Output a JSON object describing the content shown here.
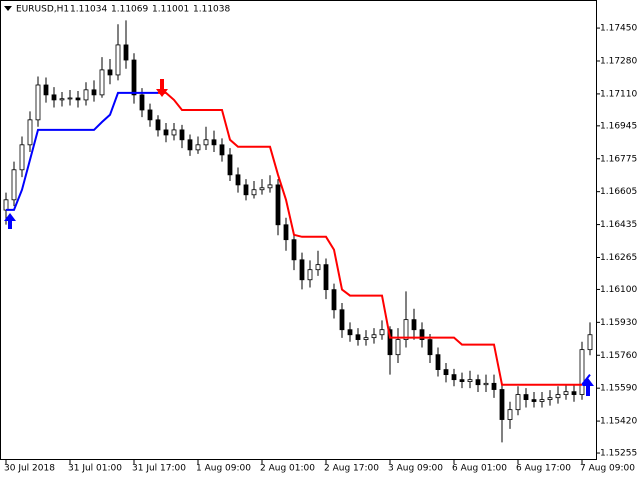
{
  "chart_data": {
    "type": "candlestick",
    "title": "EURUSD,H1",
    "header_values": [
      1.11034,
      1.11069,
      1.11001,
      1.11038
    ],
    "ylim": [
      1.15219,
      1.17595
    ],
    "yticks": [
      {
        "value": 1.1745,
        "label": "1.17450"
      },
      {
        "value": 1.1728,
        "label": "1.17280"
      },
      {
        "value": 1.1711,
        "label": "1.17110"
      },
      1.16945,
      1.16775,
      1.16605,
      1.16435,
      1.16265,
      {
        "value": 1.161,
        "label": "1.16100"
      },
      {
        "value": 1.1593,
        "label": "1.15930"
      },
      {
        "value": 1.1576,
        "label": "1.15760"
      },
      {
        "value": 1.1559,
        "label": "1.15590"
      },
      {
        "value": 1.1542,
        "label": "1.15420"
      },
      1.15255
    ],
    "xlim": [
      -0.75,
      73.75
    ],
    "xticks": [
      {
        "value": 0,
        "label": "30 Jul 2018"
      },
      {
        "value": 8,
        "label": "31 Jul 01:00"
      },
      {
        "value": 16,
        "label": "31 Jul 17:00"
      },
      {
        "value": 24,
        "label": "1 Aug 09:00"
      },
      {
        "value": 32,
        "label": "2 Aug 01:00"
      },
      {
        "value": 40,
        "label": "2 Aug 17:00"
      },
      {
        "value": 48,
        "label": "3 Aug 09:00"
      },
      {
        "value": 56,
        "label": "6 Aug 01:00"
      },
      {
        "value": 64,
        "label": "6 Aug 17:00"
      },
      {
        "value": 72,
        "label": "7 Aug 09:00"
      }
    ],
    "candles": {
      "open": [
        1.1651,
        1.16563,
        1.16718,
        1.16847,
        1.16976,
        1.17156,
        1.17105,
        1.17079,
        1.17085,
        1.17089,
        1.17079,
        1.17131,
        1.17105,
        1.17234,
        1.17208,
        1.17363,
        1.17285,
        1.17105,
        1.17027,
        1.16976,
        1.16924,
        1.16898,
        1.16924,
        1.16873,
        1.16821,
        1.16847,
        1.16873,
        1.16847,
        1.16795,
        1.16692,
        1.1664,
        1.16589,
        1.16615,
        1.16625,
        1.1664,
        1.16434,
        1.16357,
        1.16253,
        1.1615,
        1.16202,
        1.16228,
        1.16099,
        1.15995,
        1.15892,
        1.15866,
        1.15841,
        1.15851,
        1.15866,
        1.15892,
        1.15763,
        1.15841,
        1.15944,
        1.15892,
        1.15841,
        1.15763,
        1.15686,
        1.1566,
        1.15634,
        1.15624,
        1.15634,
        1.15608,
        1.15615,
        1.15583,
        1.15428,
        1.15479,
        1.15557,
        1.15531,
        1.15521,
        1.15531,
        1.15541,
        1.15557,
        1.15572,
        1.15557,
        1.15789
      ],
      "high": [
        1.166,
        1.1676,
        1.1689,
        1.1702,
        1.172,
        1.17195,
        1.17145,
        1.1712,
        1.1713,
        1.17125,
        1.1717,
        1.1718,
        1.173,
        1.1729,
        1.1747,
        1.1749,
        1.1732,
        1.1714,
        1.1706,
        1.17,
        1.1696,
        1.1696,
        1.1695,
        1.169,
        1.1689,
        1.1694,
        1.1692,
        1.1688,
        1.1683,
        1.1673,
        1.1667,
        1.1666,
        1.1667,
        1.1669,
        1.1667,
        1.1647,
        1.1639,
        1.1629,
        1.1625,
        1.163,
        1.1626,
        1.1613,
        1.1603,
        1.1593,
        1.159,
        1.1589,
        1.159,
        1.1594,
        1.1591,
        1.159,
        1.1609,
        1.16,
        1.1593,
        1.1587,
        1.158,
        1.1572,
        1.1569,
        1.1567,
        1.1568,
        1.1566,
        1.1566,
        1.1566,
        1.1561,
        1.1552,
        1.156,
        1.1559,
        1.1557,
        1.1557,
        1.1558,
        1.156,
        1.1561,
        1.1561,
        1.1583,
        1.1593
      ],
      "low": [
        1.16435,
        1.1653,
        1.1668,
        1.1681,
        1.1694,
        1.17065,
        1.1704,
        1.17045,
        1.1705,
        1.1704,
        1.1705,
        1.1707,
        1.1709,
        1.1716,
        1.1718,
        1.1724,
        1.1706,
        1.1699,
        1.1694,
        1.1689,
        1.1686,
        1.1687,
        1.1683,
        1.1679,
        1.168,
        1.1682,
        1.1681,
        1.1676,
        1.1666,
        1.166,
        1.1656,
        1.1657,
        1.1659,
        1.166,
        1.1638,
        1.163,
        1.162,
        1.161,
        1.1611,
        1.1617,
        1.1605,
        1.1595,
        1.1585,
        1.1583,
        1.1581,
        1.1581,
        1.1582,
        1.1584,
        1.1566,
        1.1572,
        1.158,
        1.1584,
        1.158,
        1.1572,
        1.1565,
        1.1562,
        1.156,
        1.1559,
        1.1559,
        1.1557,
        1.1557,
        1.1554,
        1.1531,
        1.1538,
        1.1545,
        1.1549,
        1.1549,
        1.1549,
        1.155,
        1.1551,
        1.1553,
        1.1552,
        1.1553,
        1.1576
      ],
      "close": [
        1.16563,
        1.16718,
        1.16847,
        1.16976,
        1.17156,
        1.17105,
        1.17079,
        1.17085,
        1.17089,
        1.17079,
        1.17131,
        1.17105,
        1.17234,
        1.17208,
        1.17363,
        1.17285,
        1.17105,
        1.17027,
        1.16976,
        1.16924,
        1.16898,
        1.16924,
        1.16873,
        1.16821,
        1.16847,
        1.16873,
        1.16847,
        1.16795,
        1.16692,
        1.1664,
        1.16589,
        1.16615,
        1.16625,
        1.1664,
        1.16434,
        1.16357,
        1.16253,
        1.1615,
        1.16202,
        1.16228,
        1.16099,
        1.15995,
        1.15892,
        1.15866,
        1.15841,
        1.15851,
        1.15866,
        1.15892,
        1.15763,
        1.15841,
        1.15944,
        1.15892,
        1.15841,
        1.15763,
        1.15686,
        1.1566,
        1.15634,
        1.15624,
        1.15634,
        1.15608,
        1.15615,
        1.15583,
        1.15428,
        1.15479,
        1.15557,
        1.15531,
        1.15521,
        1.15531,
        1.15541,
        1.15557,
        1.15572,
        1.15557,
        1.15789,
        1.15866
      ]
    },
    "lines": [
      {
        "color": "#0000ff",
        "values": [
          1.16511,
          1.16511,
          1.16615,
          1.1677,
          1.16924,
          1.16924,
          1.16924,
          1.16924,
          1.16924,
          1.16924,
          1.16924,
          1.16924,
          1.16965,
          1.17002,
          1.17115,
          1.17115,
          1.17115,
          1.17115,
          1.17115,
          1.17115,
          null,
          null,
          null,
          null,
          null,
          null,
          null,
          null,
          null,
          null,
          null,
          null,
          null,
          null,
          null,
          null,
          null,
          null,
          null,
          null,
          null,
          null,
          null,
          null,
          null,
          null,
          null,
          null,
          null,
          null,
          null,
          null,
          null,
          null,
          null,
          null,
          null,
          null,
          null,
          null,
          null,
          null,
          null,
          null,
          null,
          null,
          null,
          null,
          null,
          null,
          null,
          null,
          1.15608,
          1.1566
        ]
      },
      {
        "color": "#ff0000",
        "values": [
          null,
          null,
          null,
          null,
          null,
          null,
          null,
          null,
          null,
          null,
          null,
          null,
          null,
          null,
          null,
          null,
          null,
          null,
          null,
          1.17115,
          1.17115,
          1.17079,
          1.17027,
          1.17027,
          1.17027,
          1.17027,
          1.17027,
          1.17027,
          1.16873,
          1.16837,
          1.16837,
          1.16837,
          1.16837,
          1.16837,
          1.16692,
          1.16563,
          1.16382,
          1.16372,
          1.16372,
          1.16372,
          1.16372,
          1.16305,
          1.16099,
          1.16068,
          1.16068,
          1.16068,
          1.16068,
          1.16068,
          1.15851,
          1.15851,
          1.15851,
          1.15851,
          1.15851,
          1.15851,
          1.15851,
          1.15851,
          1.15851,
          1.15815,
          1.15815,
          1.15815,
          1.15815,
          1.15815,
          1.15608,
          1.15608,
          1.15608,
          1.15608,
          1.15608,
          1.15608,
          1.15608,
          1.15608,
          1.15608,
          1.15608,
          1.15608,
          null
        ]
      }
    ]
  }
}
